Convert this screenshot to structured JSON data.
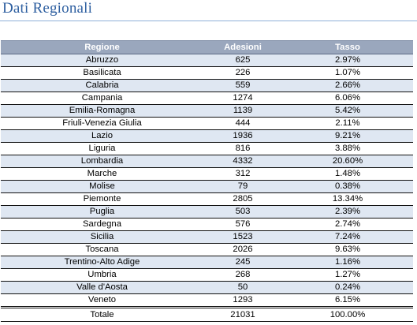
{
  "title": "Dati Regionali",
  "table": {
    "headers": {
      "regione": "Regione",
      "adesioni": "Adesioni",
      "tasso": "Tasso"
    },
    "rows": [
      {
        "regione": "Abruzzo",
        "adesioni": "625",
        "tasso": "2.97%"
      },
      {
        "regione": "Basilicata",
        "adesioni": "226",
        "tasso": "1.07%"
      },
      {
        "regione": "Calabria",
        "adesioni": "559",
        "tasso": "2.66%"
      },
      {
        "regione": "Campania",
        "adesioni": "1274",
        "tasso": "6.06%"
      },
      {
        "regione": "Emilia-Romagna",
        "adesioni": "1139",
        "tasso": "5.42%"
      },
      {
        "regione": "Friuli-Venezia Giulia",
        "adesioni": "444",
        "tasso": "2.11%"
      },
      {
        "regione": "Lazio",
        "adesioni": "1936",
        "tasso": "9.21%"
      },
      {
        "regione": "Liguria",
        "adesioni": "816",
        "tasso": "3.88%"
      },
      {
        "regione": "Lombardia",
        "adesioni": "4332",
        "tasso": "20.60%"
      },
      {
        "regione": "Marche",
        "adesioni": "312",
        "tasso": "1.48%"
      },
      {
        "regione": "Molise",
        "adesioni": "79",
        "tasso": "0.38%"
      },
      {
        "regione": "Piemonte",
        "adesioni": "2805",
        "tasso": "13.34%"
      },
      {
        "regione": "Puglia",
        "adesioni": "503",
        "tasso": "2.39%"
      },
      {
        "regione": "Sardegna",
        "adesioni": "576",
        "tasso": "2.74%"
      },
      {
        "regione": "Sicilia",
        "adesioni": "1523",
        "tasso": "7.24%"
      },
      {
        "regione": "Toscana",
        "adesioni": "2026",
        "tasso": "9.63%"
      },
      {
        "regione": "Trentino-Alto Adige",
        "adesioni": "245",
        "tasso": "1.16%"
      },
      {
        "regione": "Umbria",
        "adesioni": "268",
        "tasso": "1.27%"
      },
      {
        "regione": "Valle d'Aosta",
        "adesioni": "50",
        "tasso": "0.24%"
      },
      {
        "regione": "Veneto",
        "adesioni": "1293",
        "tasso": "6.15%"
      }
    ],
    "total": {
      "regione": "Totale",
      "adesioni": "21031",
      "tasso": "100.00%"
    }
  },
  "colors": {
    "title": "#2e5fa0",
    "header_bg": "#9aa7bd",
    "band_bg": "#dfe7f2"
  }
}
